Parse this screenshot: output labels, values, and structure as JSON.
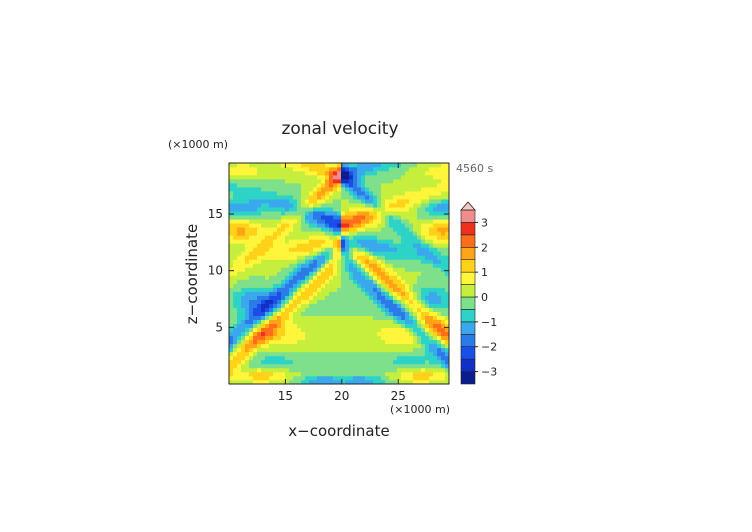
{
  "chart_data": {
    "type": "heatmap",
    "title": "zonal velocity",
    "xlabel": "x−coordinate",
    "ylabel": "z−coordinate",
    "x_unit": "(×1000 m)",
    "y_unit": "(×1000 m)",
    "time_label": "4560 s",
    "xlim": [
      10,
      29.5
    ],
    "ylim": [
      0,
      19.5
    ],
    "x_ticks": [
      15,
      20,
      25
    ],
    "y_ticks": [
      5,
      10,
      15
    ],
    "colorbar": {
      "levels": [
        -3.5,
        -3,
        -2.5,
        -2,
        -1.5,
        -1,
        -0.5,
        0,
        0.5,
        1,
        1.5,
        2,
        2.5,
        3,
        3.5
      ],
      "colors": [
        "#0b1d8c",
        "#1030c8",
        "#1a4ee8",
        "#2a7ae8",
        "#3aa8ec",
        "#2ed3c8",
        "#7ee08a",
        "#c6ee3c",
        "#fff53a",
        "#ffd21a",
        "#ffa317",
        "#ff6d1a",
        "#f0301e",
        "#f08c8c"
      ],
      "tick_labels": [
        "3",
        "2",
        "1",
        "0",
        "−1",
        "−2",
        "−3"
      ],
      "tick_values": [
        3,
        2,
        1,
        0,
        -1,
        -2,
        -3
      ],
      "extend": "max"
    }
  }
}
